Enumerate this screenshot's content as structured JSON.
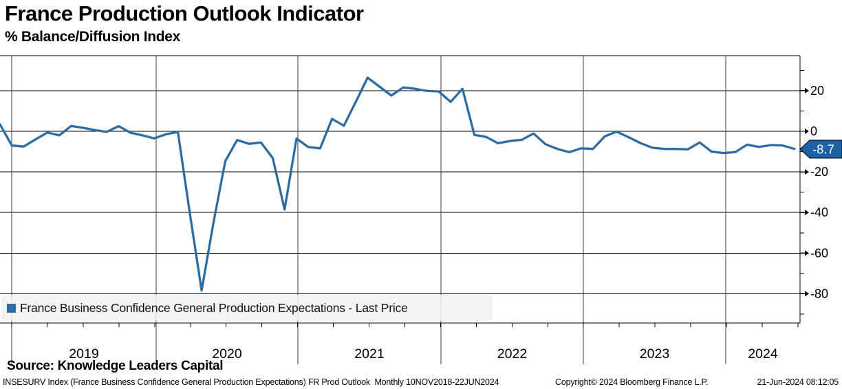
{
  "header": {
    "title": "France Production Outlook Indicator",
    "subtitle": "% Balance/Diffusion Index"
  },
  "legend": {
    "label": "France Business Confidence General Production Expectations - Last Price",
    "marker_color": "#2d6ca3"
  },
  "last_value_badge": {
    "text": "-8.7",
    "bg": "#1e60a4",
    "text_color": "#ffffff"
  },
  "footer": {
    "source": "Source: Knowledge Leaders Capital",
    "left": "INSESURV Index (France Business Confidence General Production Expectations) FR Prod Outlook  Monthly 10NOV2018-22JUN2024",
    "copyright": "Copyright© 2024 Bloomberg Finance L.P.",
    "timestamp": "21-Jun-2024 08:12:05"
  },
  "chart_data": {
    "type": "line",
    "title": "France Production Outlook Indicator",
    "ylabel": "% Balance/Diffusion Index",
    "series_name": "France Business Confidence General Production Expectations - Last Price",
    "line_color": "#2d6ca3",
    "grid": "horizontal gridlines at labeled ticks; vertical year-boundary lines",
    "legend_position": "bottom-left inside plot",
    "y_axis_side": "right",
    "ylim": [
      -94.5,
      36.9
    ],
    "y_ticks": [
      20,
      0,
      -20,
      -40,
      -60,
      -80
    ],
    "y_minor_ticks": [
      30,
      10,
      -10,
      -30,
      -50,
      -70,
      -90
    ],
    "x_year_labels": [
      "2019",
      "2020",
      "2021",
      "2022",
      "2023",
      "2024"
    ],
    "last_value": -8.7,
    "x": [
      "2018-11",
      "2018-12",
      "2019-01",
      "2019-02",
      "2019-03",
      "2019-04",
      "2019-05",
      "2019-06",
      "2019-07",
      "2019-08",
      "2019-09",
      "2019-10",
      "2019-11",
      "2019-12",
      "2020-01",
      "2020-02",
      "2020-03",
      "2020-04",
      "2020-05",
      "2020-06",
      "2020-07",
      "2020-08",
      "2020-09",
      "2020-10",
      "2020-11",
      "2020-12",
      "2021-01",
      "2021-02",
      "2021-03",
      "2021-04",
      "2021-05",
      "2021-06",
      "2021-07",
      "2021-08",
      "2021-09",
      "2021-10",
      "2021-11",
      "2021-12",
      "2022-01",
      "2022-02",
      "2022-03",
      "2022-04",
      "2022-05",
      "2022-06",
      "2022-07",
      "2022-08",
      "2022-09",
      "2022-10",
      "2022-11",
      "2022-12",
      "2023-01",
      "2023-02",
      "2023-03",
      "2023-04",
      "2023-05",
      "2023-06",
      "2023-07",
      "2023-08",
      "2023-09",
      "2023-10",
      "2023-11",
      "2023-12",
      "2024-01",
      "2024-02",
      "2024-03",
      "2024-04",
      "2024-05",
      "2024-06"
    ],
    "values": [
      3.4,
      -7.0,
      -7.5,
      -4.0,
      -0.6,
      -2.0,
      2.6,
      1.7,
      0.6,
      -0.3,
      2.5,
      -0.7,
      -2.0,
      -3.5,
      -1.5,
      -0.3,
      -40.0,
      -78.4,
      -45.0,
      -14.7,
      -4.3,
      -6.2,
      -5.5,
      -13.2,
      -38.5,
      -3.6,
      -7.8,
      -8.4,
      6.1,
      2.7,
      14.5,
      26.4,
      22.0,
      17.6,
      21.6,
      20.9,
      19.9,
      19.6,
      14.5,
      20.9,
      -1.8,
      -2.8,
      -5.9,
      -4.8,
      -4.2,
      -1.1,
      -6.4,
      -8.7,
      -10.3,
      -8.4,
      -8.7,
      -2.5,
      -0.2,
      -2.9,
      -5.8,
      -8.1,
      -8.7,
      -8.7,
      -8.9,
      -5.5,
      -10.0,
      -10.7,
      -10.3,
      -6.6,
      -7.7,
      -6.8,
      -7.0,
      -8.7
    ]
  }
}
